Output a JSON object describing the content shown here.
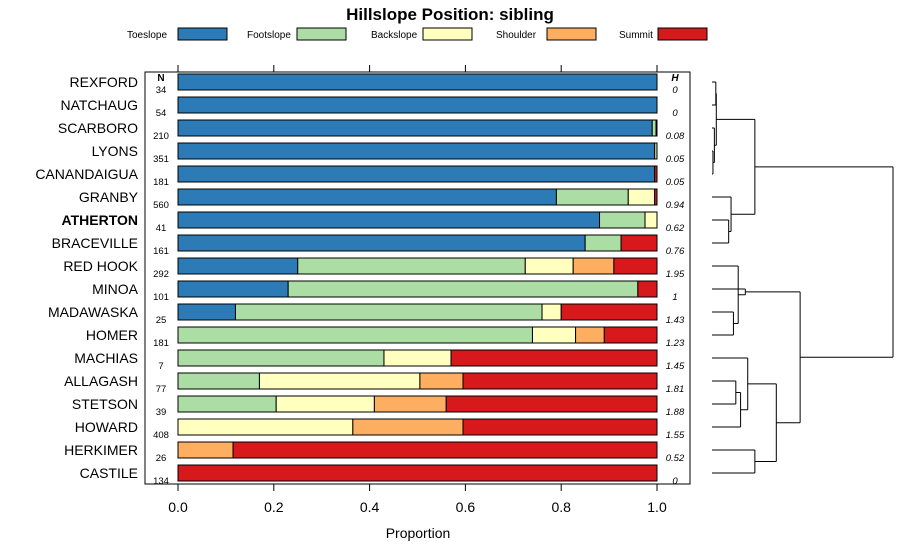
{
  "chart_data": {
    "type": "bar",
    "orientation": "horizontal",
    "stacked": true,
    "title": "Hillslope Position: sibling",
    "xlabel": "Proportion",
    "xlim": [
      0,
      1
    ],
    "xticks": [
      0,
      0.2,
      0.4,
      0.6,
      0.8,
      1
    ],
    "xtick_labels": [
      "0.0",
      "0.2",
      "0.4",
      "0.6",
      "0.8",
      "1.0"
    ],
    "n_header": "N",
    "h_header": "H",
    "legend": {
      "placement": "top",
      "entries": [
        {
          "name": "Toeslope",
          "color": "#2c7bb6"
        },
        {
          "name": "Footslope",
          "color": "#abdda4"
        },
        {
          "name": "Backslope",
          "color": "#ffffbf"
        },
        {
          "name": "Shoulder",
          "color": "#fdae61"
        },
        {
          "name": "Summit",
          "color": "#d7191c"
        }
      ]
    },
    "categories": [
      "REXFORD",
      "NATCHAUG",
      "SCARBORO",
      "LYONS",
      "CANANDAIGUA",
      "GRANBY",
      "ATHERTON",
      "BRACEVILLE",
      "RED HOOK",
      "MINOA",
      "MADAWASKA",
      "HOMER",
      "MACHIAS",
      "ALLAGASH",
      "STETSON",
      "HOWARD",
      "HERKIMER",
      "CASTILE"
    ],
    "highlighted": "ATHERTON",
    "n": [
      "34",
      "54",
      "210",
      "351",
      "181",
      "560",
      "41",
      "161",
      "292",
      "101",
      "25",
      "181",
      "7",
      "77",
      "39",
      "408",
      "26",
      "134"
    ],
    "h": [
      "0",
      "0",
      "0.08",
      "0.05",
      "0.05",
      "0.94",
      "0.62",
      "0.76",
      "1.95",
      "1",
      "1.43",
      "1.23",
      "1.45",
      "1.81",
      "1.88",
      "1.55",
      "0.52",
      "0"
    ],
    "series": [
      {
        "name": "Toeslope",
        "values": [
          1.0,
          1.0,
          0.99,
          0.995,
          0.995,
          0.79,
          0.88,
          0.85,
          0.25,
          0.23,
          0.12,
          0.0,
          0.0,
          0.0,
          0.0,
          0.0,
          0.0,
          0.0
        ]
      },
      {
        "name": "Footslope",
        "values": [
          0.0,
          0.0,
          0.008,
          0.005,
          0.0,
          0.15,
          0.095,
          0.075,
          0.475,
          0.73,
          0.64,
          0.74,
          0.43,
          0.17,
          0.205,
          0.0,
          0.0,
          0.0
        ]
      },
      {
        "name": "Backslope",
        "values": [
          0.0,
          0.0,
          0.002,
          0.0,
          0.0,
          0.055,
          0.025,
          0.0,
          0.1,
          0.0,
          0.04,
          0.09,
          0.14,
          0.335,
          0.205,
          0.365,
          0.0,
          0.0
        ]
      },
      {
        "name": "Shoulder",
        "values": [
          0.0,
          0.0,
          0.0,
          0.0,
          0.0,
          0.0,
          0.0,
          0.0,
          0.085,
          0.0,
          0.0,
          0.06,
          0.0,
          0.09,
          0.15,
          0.23,
          0.115,
          0.0
        ]
      },
      {
        "name": "Summit",
        "values": [
          0.0,
          0.0,
          0.0,
          0.0,
          0.005,
          0.005,
          0.0,
          0.075,
          0.09,
          0.04,
          0.2,
          0.11,
          0.43,
          0.405,
          0.44,
          0.405,
          0.885,
          1.0
        ]
      }
    ],
    "dendrogram": {
      "description": "hierarchical clustering of rows",
      "merges": [
        [
          3,
          4,
          0.02
        ],
        [
          2,
          18,
          0.05
        ],
        [
          0,
          1,
          0.08
        ],
        [
          20,
          19,
          0.09
        ],
        [
          6,
          7,
          0.35
        ],
        [
          5,
          22,
          0.4
        ],
        [
          21,
          23,
          0.9
        ],
        [
          10,
          11,
          0.45
        ],
        [
          25,
          8,
          0.55
        ],
        [
          26,
          9,
          0.7
        ],
        [
          13,
          14,
          0.5
        ],
        [
          28,
          15,
          0.6
        ],
        [
          29,
          12,
          0.75
        ],
        [
          16,
          17,
          0.9
        ],
        [
          30,
          31,
          1.35
        ],
        [
          27,
          32,
          1.85
        ],
        [
          24,
          33,
          3.8
        ]
      ],
      "max_height": 3.8
    }
  }
}
